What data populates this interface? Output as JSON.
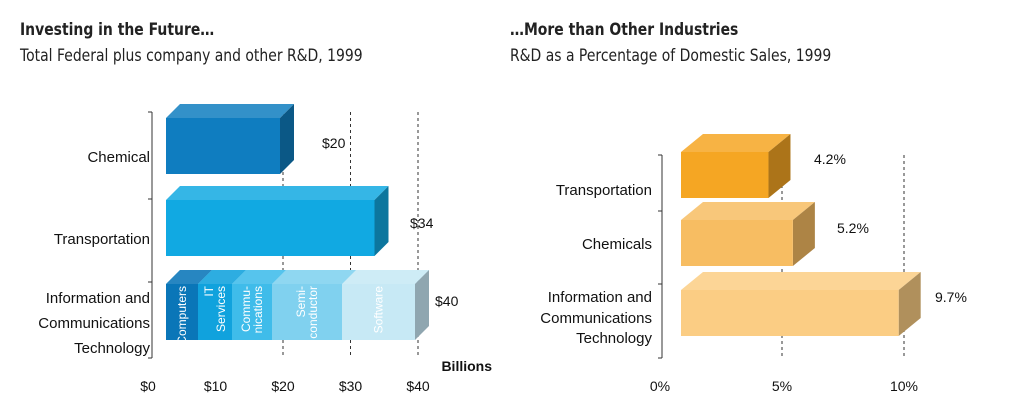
{
  "left": {
    "title": "Investing in the Future…",
    "subtitle": "Total Federal plus company and other R&D, 1999"
  },
  "right": {
    "title": "…More than Other Industries",
    "subtitle": "R&D as a Percentage of Domestic Sales, 1999"
  },
  "chart_data": [
    {
      "type": "bar",
      "orientation": "horizontal",
      "title": "Investing in the Future…",
      "subtitle": "Total Federal plus company and other R&D, 1999",
      "xlabel": "Billions",
      "xlim": [
        0,
        40
      ],
      "x_ticks": [
        "$0",
        "$10",
        "$20",
        "$30",
        "$40"
      ],
      "grid": "dashed vertical lines at $20, $30, $40",
      "categories": [
        "Chemical",
        "Transportation",
        "Information and Communications Technology"
      ],
      "values": [
        20,
        34,
        40
      ],
      "data_labels": [
        "$20",
        "$34",
        "$40"
      ],
      "colors": [
        "#0f7dc0",
        "#11a9e2",
        "#11a9e2"
      ],
      "stacked_segments": {
        "category": "Information and Communications Technology",
        "segments": [
          {
            "name": "Computers",
            "color": "#0a76b8"
          },
          {
            "name": "IT Services",
            "color": "#10a2dd"
          },
          {
            "name": "Commu- nications",
            "color": "#3fbcea"
          },
          {
            "name": "Semi- conductor",
            "color": "#80d1ef"
          },
          {
            "name": "Software",
            "color": "#c7e9f5"
          }
        ]
      }
    },
    {
      "type": "bar",
      "orientation": "horizontal",
      "title": "…More than Other Industries",
      "subtitle": "R&D as a Percentage of Domestic Sales, 1999",
      "xlim": [
        0,
        10
      ],
      "x_ticks": [
        "0%",
        "5%",
        "10%"
      ],
      "grid": "dashed vertical lines at 5%, 10%",
      "categories": [
        "Transportation",
        "Chemicals",
        "Information and Communications Technology"
      ],
      "values": [
        4.2,
        5.2,
        9.7
      ],
      "data_labels": [
        "4.2%",
        "5.2%",
        "9.7%"
      ],
      "colors": [
        "#f5a623",
        "#f7bd62",
        "#fbcd84"
      ]
    }
  ]
}
